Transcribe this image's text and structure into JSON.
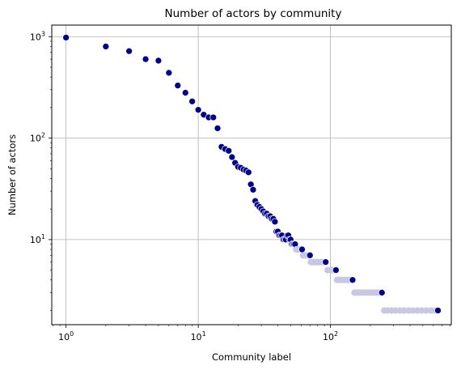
{
  "chart_data": {
    "type": "scatter",
    "title": "Number of actors by community",
    "xlabel": "Community label",
    "ylabel": "Number of actors",
    "xscale": "log",
    "yscale": "log",
    "xlim": [
      0.78,
      820
    ],
    "ylim": [
      1.45,
      1300
    ],
    "grid": true,
    "xticks": [
      {
        "base": "10",
        "exp": "0",
        "value": 1
      },
      {
        "base": "10",
        "exp": "1",
        "value": 10
      },
      {
        "base": "10",
        "exp": "2",
        "value": 100
      }
    ],
    "yticks": [
      {
        "base": "10",
        "exp": "1",
        "value": 10
      },
      {
        "base": "10",
        "exp": "2",
        "value": 100
      },
      {
        "base": "10",
        "exp": "3",
        "value": 1000
      }
    ],
    "marker_color": "#00008b",
    "faded_marker_color": "#c8c8e6",
    "points": [
      [
        1,
        980
      ],
      [
        2,
        800
      ],
      [
        3,
        720
      ],
      [
        4,
        600
      ],
      [
        5,
        580
      ],
      [
        6,
        440
      ],
      [
        7,
        330
      ],
      [
        8,
        280
      ],
      [
        9,
        230
      ],
      [
        10,
        190
      ],
      [
        11,
        170
      ],
      [
        12,
        160
      ],
      [
        13,
        160
      ],
      [
        14,
        125
      ],
      [
        15,
        82
      ],
      [
        16,
        78
      ],
      [
        17,
        75
      ],
      [
        18,
        65
      ],
      [
        19,
        57
      ],
      [
        20,
        52
      ],
      [
        21,
        51
      ],
      [
        22,
        49
      ],
      [
        23,
        48
      ],
      [
        24,
        46
      ],
      [
        25,
        35
      ],
      [
        26,
        31
      ],
      [
        27,
        24
      ],
      [
        28,
        22
      ],
      [
        29,
        21
      ],
      [
        30,
        20
      ],
      [
        31,
        19
      ],
      [
        32,
        18
      ],
      [
        33,
        18
      ],
      [
        34,
        17
      ],
      [
        35,
        17
      ],
      [
        36,
        16
      ],
      [
        37,
        16
      ],
      [
        38,
        15
      ],
      [
        39,
        12
      ],
      [
        40,
        12
      ],
      [
        41,
        11
      ],
      [
        42,
        11
      ],
      [
        43,
        11
      ],
      [
        44,
        10
      ],
      [
        45,
        10
      ],
      [
        46,
        10
      ],
      [
        47,
        11
      ],
      [
        48,
        11
      ],
      [
        49,
        10
      ],
      [
        50,
        10
      ],
      [
        51,
        9
      ],
      [
        52,
        9
      ],
      [
        53,
        9
      ],
      [
        54,
        9
      ],
      [
        55,
        8
      ],
      [
        56,
        8
      ],
      [
        57,
        8
      ],
      [
        58,
        8
      ],
      [
        59,
        8
      ],
      [
        60,
        8
      ],
      [
        61,
        8
      ],
      [
        62,
        7
      ],
      [
        63,
        7
      ],
      [
        64,
        7
      ],
      [
        65,
        7
      ],
      [
        66,
        7
      ],
      [
        67,
        7
      ],
      [
        68,
        7
      ],
      [
        69,
        7
      ],
      [
        70,
        7
      ],
      [
        71,
        6
      ],
      [
        72,
        6
      ],
      [
        73,
        6
      ],
      [
        74,
        6
      ],
      [
        75,
        6
      ],
      [
        76,
        6
      ],
      [
        77,
        6
      ],
      [
        78,
        6
      ],
      [
        79,
        6
      ],
      [
        80,
        6
      ],
      [
        82,
        6
      ],
      [
        84,
        6
      ],
      [
        86,
        6
      ],
      [
        88,
        6
      ],
      [
        90,
        6
      ],
      [
        92,
        6
      ],
      [
        95,
        5
      ],
      [
        98,
        5
      ],
      [
        100,
        5
      ],
      [
        103,
        5
      ],
      [
        106,
        5
      ],
      [
        110,
        5
      ],
      [
        112,
        4
      ],
      [
        115,
        4
      ],
      [
        118,
        4
      ],
      [
        122,
        4
      ],
      [
        126,
        4
      ],
      [
        130,
        4
      ],
      [
        134,
        4
      ],
      [
        138,
        4
      ],
      [
        142,
        4
      ],
      [
        147,
        4
      ],
      [
        152,
        3
      ],
      [
        158,
        3
      ],
      [
        165,
        3
      ],
      [
        172,
        3
      ],
      [
        180,
        3
      ],
      [
        188,
        3
      ],
      [
        196,
        3
      ],
      [
        205,
        3
      ],
      [
        215,
        3
      ],
      [
        225,
        3
      ],
      [
        235,
        3
      ],
      [
        245,
        3
      ],
      [
        255,
        2
      ],
      [
        270,
        2
      ],
      [
        290,
        2
      ],
      [
        310,
        2
      ],
      [
        335,
        2
      ],
      [
        360,
        2
      ],
      [
        390,
        2
      ],
      [
        420,
        2
      ],
      [
        455,
        2
      ],
      [
        490,
        2
      ],
      [
        530,
        2
      ],
      [
        575,
        2
      ],
      [
        620,
        2
      ],
      [
        650,
        2
      ]
    ]
  }
}
